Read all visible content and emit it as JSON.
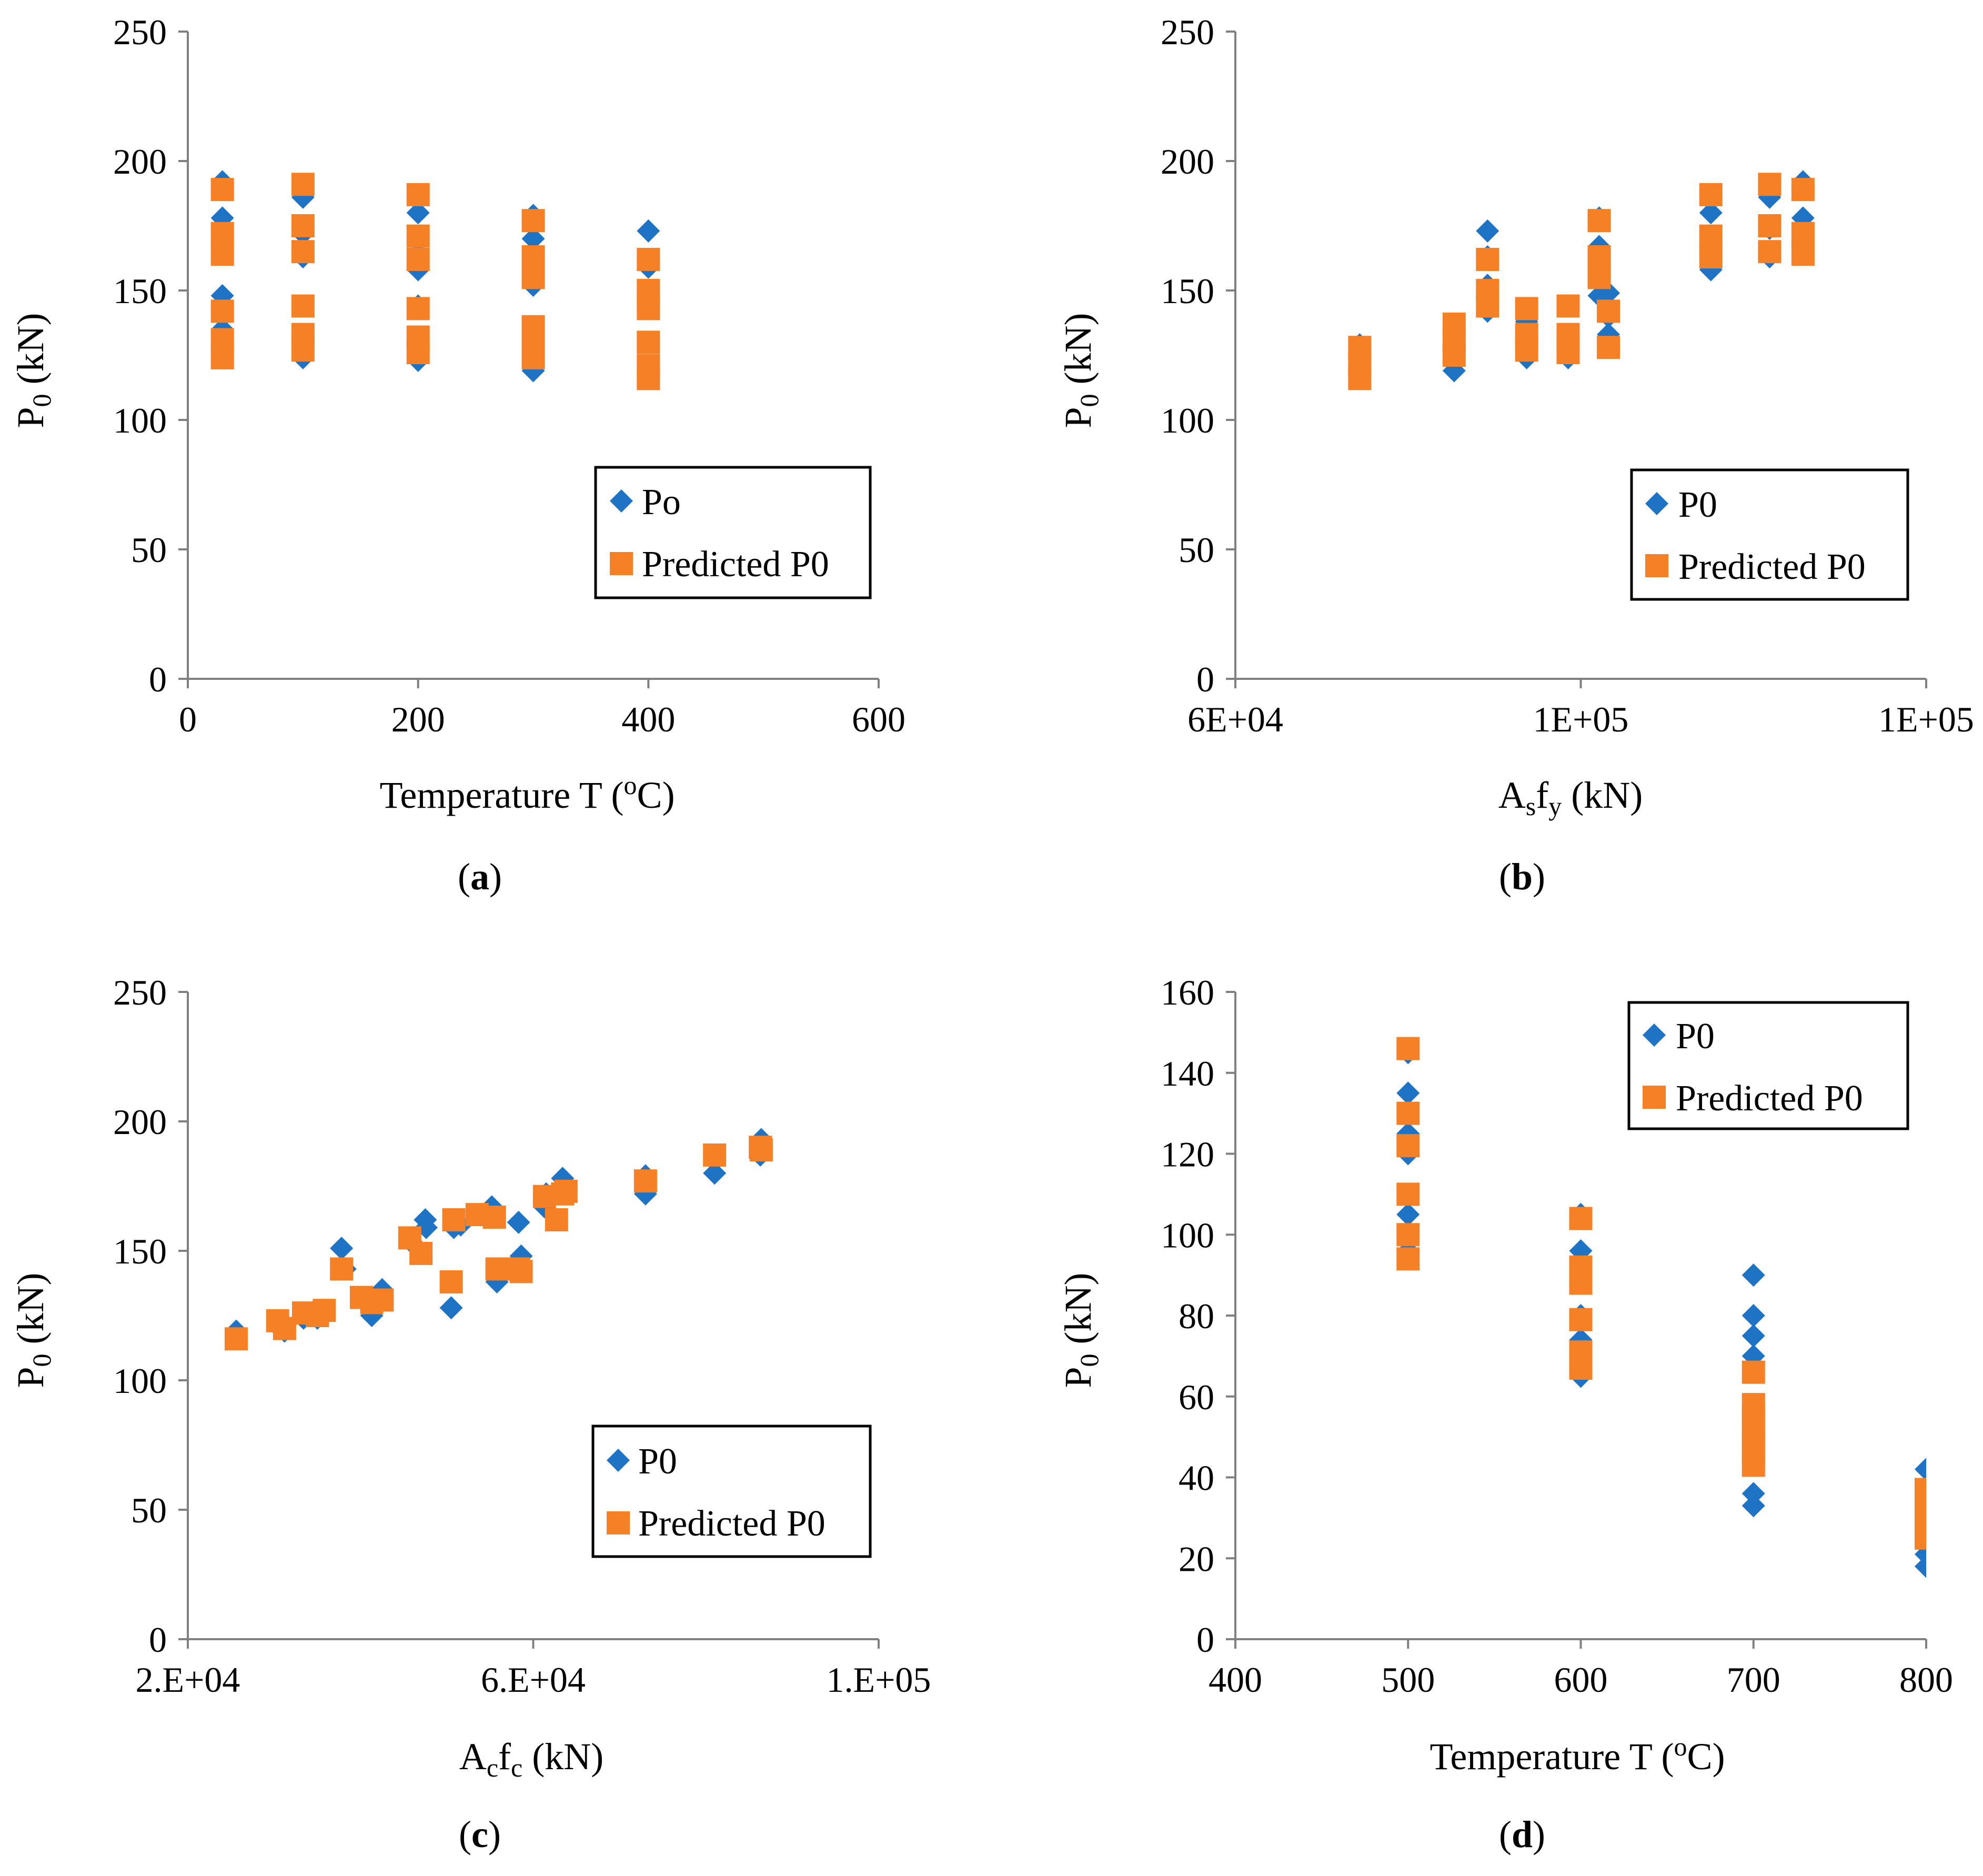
{
  "colors": {
    "observed": "#1f73c4",
    "predicted": "#f58025",
    "axis": "#808080",
    "frame": "#000000"
  },
  "icons": {
    "observed": "diamond-icon",
    "predicted": "square-icon"
  },
  "chart_data": [
    {
      "id": "a",
      "type": "scatter",
      "caption": "(a)",
      "xlabel": "Temperature T (°C)",
      "ylabel": "P0 (kN)",
      "xlim": [
        0,
        600
      ],
      "ylim": [
        0,
        250
      ],
      "xticks": [
        0,
        200,
        400,
        600
      ],
      "xtick_labels": [
        "0",
        "200",
        "400",
        "600"
      ],
      "yticks": [
        0,
        50,
        100,
        150,
        200,
        250
      ],
      "ytick_labels": [
        "0",
        "50",
        "100",
        "150",
        "200",
        "250"
      ],
      "legend": {
        "position": "bottom-right",
        "entries": [
          "Po",
          "Predicted P0"
        ]
      },
      "series": [
        {
          "name": "Po",
          "marker": "diamond",
          "x": [
            30,
            30,
            30,
            30,
            30,
            100,
            100,
            100,
            100,
            100,
            100,
            200,
            200,
            200,
            200,
            200,
            200,
            300,
            300,
            300,
            300,
            300,
            300,
            400,
            400,
            400,
            400,
            400,
            400
          ],
          "y": [
            192,
            178,
            168,
            148,
            135,
            186,
            163,
            172,
            144,
            133,
            124,
            180,
            169,
            158,
            144,
            131,
            123,
            179,
            170,
            152,
            135,
            126,
            119,
            173,
            159,
            150,
            143,
            130,
            119
          ]
        },
        {
          "name": "Predicted P0",
          "marker": "square",
          "x": [
            30,
            30,
            30,
            30,
            30,
            30,
            100,
            100,
            100,
            100,
            100,
            100,
            200,
            200,
            200,
            200,
            200,
            200,
            300,
            300,
            300,
            300,
            300,
            300,
            400,
            400,
            400,
            400,
            400,
            400
          ],
          "y": [
            189,
            172,
            164,
            142,
            131,
            124,
            191,
            175,
            165,
            144,
            133,
            127,
            187,
            171,
            162,
            143,
            132,
            126,
            177,
            163,
            155,
            136,
            130,
            124,
            162,
            150,
            143,
            130,
            121,
            116
          ]
        }
      ]
    },
    {
      "id": "b",
      "type": "scatter",
      "caption": "(b)",
      "xlabel": "Asfy (kN)",
      "ylabel": "P0 (kN)",
      "xlim": [
        60000,
        120000
      ],
      "ylim": [
        0,
        250
      ],
      "xticks": [
        60000,
        90000,
        120000
      ],
      "xtick_labels": [
        "6E+04",
        "1E+05",
        "1E+05"
      ],
      "yticks": [
        0,
        50,
        100,
        150,
        200,
        250
      ],
      "ytick_labels": [
        "0",
        "50",
        "100",
        "150",
        "200",
        "250"
      ],
      "legend": {
        "position": "bottom-right",
        "entries": [
          "P0",
          "Predicted P0"
        ]
      },
      "series": [
        {
          "name": "P0",
          "marker": "diamond",
          "x": [
            70800,
            70800,
            79000,
            79000,
            81900,
            81900,
            81900,
            81900,
            85300,
            85300,
            85300,
            88900,
            88900,
            91600,
            91600,
            91600,
            91600,
            92400,
            92400,
            92400,
            101300,
            101300,
            101300,
            106400,
            106400,
            106400,
            109300,
            109300,
            109300
          ],
          "y": [
            129,
            119,
            119,
            130,
            173,
            163,
            152,
            142,
            138,
            131,
            124,
            144,
            124,
            178,
            167,
            155,
            148,
            149,
            140,
            133,
            180,
            167,
            158,
            186,
            174,
            163,
            192,
            178,
            168
          ]
        },
        {
          "name": "Predicted P0",
          "marker": "square",
          "x": [
            70800,
            70800,
            70800,
            79000,
            79000,
            79000,
            81900,
            81900,
            81900,
            85300,
            85300,
            85300,
            88900,
            88900,
            88900,
            91600,
            91600,
            91600,
            91600,
            92400,
            92400,
            101300,
            101300,
            101300,
            106400,
            106400,
            106400,
            109300,
            109300,
            109300
          ],
          "y": [
            128,
            122,
            116,
            137,
            130,
            125,
            162,
            150,
            144,
            143,
            133,
            127,
            144,
            133,
            126,
            177,
            163,
            158,
            155,
            142,
            128,
            187,
            171,
            163,
            191,
            175,
            165,
            189,
            172,
            164
          ]
        }
      ]
    },
    {
      "id": "c",
      "type": "scatter",
      "caption": "(c)",
      "xlabel": "Acfc (kN)",
      "ylabel": "P0 (kN)",
      "xlim": [
        20000,
        100000
      ],
      "ylim": [
        0,
        250
      ],
      "xticks": [
        20000,
        60000,
        100000
      ],
      "xtick_labels": [
        "2.E+04",
        "6.E+04",
        "1.E+05"
      ],
      "yticks": [
        0,
        50,
        100,
        150,
        200,
        250
      ],
      "ytick_labels": [
        "0",
        "50",
        "100",
        "150",
        "200",
        "250"
      ],
      "legend": {
        "position": "bottom-right",
        "entries": [
          "P0",
          "Predicted P0"
        ]
      },
      "series": [
        {
          "name": "P0",
          "marker": "diamond",
          "x": [
            25600,
            30400,
            31200,
            33400,
            35000,
            37800,
            38200,
            40100,
            41300,
            42500,
            46000,
            47500,
            47600,
            50500,
            50800,
            51600,
            55200,
            55800,
            58300,
            58600,
            61300,
            61500,
            62700,
            63400,
            63800,
            73000,
            73000,
            81000,
            86300,
            86400
          ],
          "y": [
            119,
            121,
            119,
            124,
            124,
            151,
            143,
            132,
            125,
            135,
            153,
            162,
            159,
            128,
            159,
            160,
            167,
            138,
            161,
            148,
            167,
            172,
            162,
            178,
            172,
            172,
            179,
            180,
            187,
            193
          ]
        },
        {
          "name": "Predicted P0",
          "marker": "square",
          "x": [
            25600,
            30400,
            31200,
            33400,
            35000,
            35800,
            37800,
            40100,
            41300,
            42500,
            45700,
            47000,
            50500,
            50800,
            53500,
            55500,
            55800,
            58300,
            58600,
            61300,
            62700,
            63400,
            63800,
            73000,
            81000,
            86300,
            86400
          ],
          "y": [
            116,
            123,
            120,
            126,
            125,
            127,
            143,
            132,
            130,
            131,
            155,
            149,
            138,
            162,
            164,
            163,
            143,
            143,
            142,
            171,
            162,
            172,
            173,
            177,
            187,
            190,
            189
          ]
        }
      ]
    },
    {
      "id": "d",
      "type": "scatter",
      "caption": "(d)",
      "xlabel": "Temperature T (°C)",
      "ylabel": "P0 (kN)",
      "xlim": [
        400,
        800
      ],
      "ylim": [
        0,
        160
      ],
      "xticks": [
        400,
        500,
        600,
        700,
        800
      ],
      "xtick_labels": [
        "400",
        "500",
        "600",
        "700",
        "800"
      ],
      "yticks": [
        0,
        20,
        40,
        60,
        80,
        100,
        120,
        140,
        160
      ],
      "ytick_labels": [
        "0",
        "20",
        "40",
        "60",
        "80",
        "100",
        "120",
        "140",
        "160"
      ],
      "legend": {
        "position": "top-right",
        "entries": [
          "P0",
          "Predicted P0"
        ]
      },
      "series": [
        {
          "name": "P0",
          "marker": "diamond",
          "x": [
            500,
            500,
            500,
            500,
            500,
            500,
            500,
            600,
            600,
            600,
            600,
            600,
            600,
            700,
            700,
            700,
            700,
            700,
            700,
            800,
            800,
            800,
            800
          ],
          "y": [
            145,
            135,
            125,
            120,
            105,
            100,
            96,
            105,
            96,
            90,
            80,
            74,
            65,
            90,
            80,
            75,
            70,
            36,
            33,
            42,
            35,
            21,
            18
          ]
        },
        {
          "name": "Predicted P0",
          "marker": "square",
          "x": [
            500,
            500,
            500,
            500,
            500,
            500,
            600,
            600,
            600,
            600,
            600,
            600,
            700,
            700,
            700,
            700,
            700,
            700,
            700,
            800,
            800,
            800,
            800,
            800
          ],
          "y": [
            146,
            130,
            122,
            110,
            100,
            94,
            104,
            92,
            88,
            79,
            71,
            67,
            66,
            58,
            55,
            52,
            49,
            46,
            43,
            37,
            34,
            31,
            28,
            25
          ]
        }
      ]
    }
  ]
}
